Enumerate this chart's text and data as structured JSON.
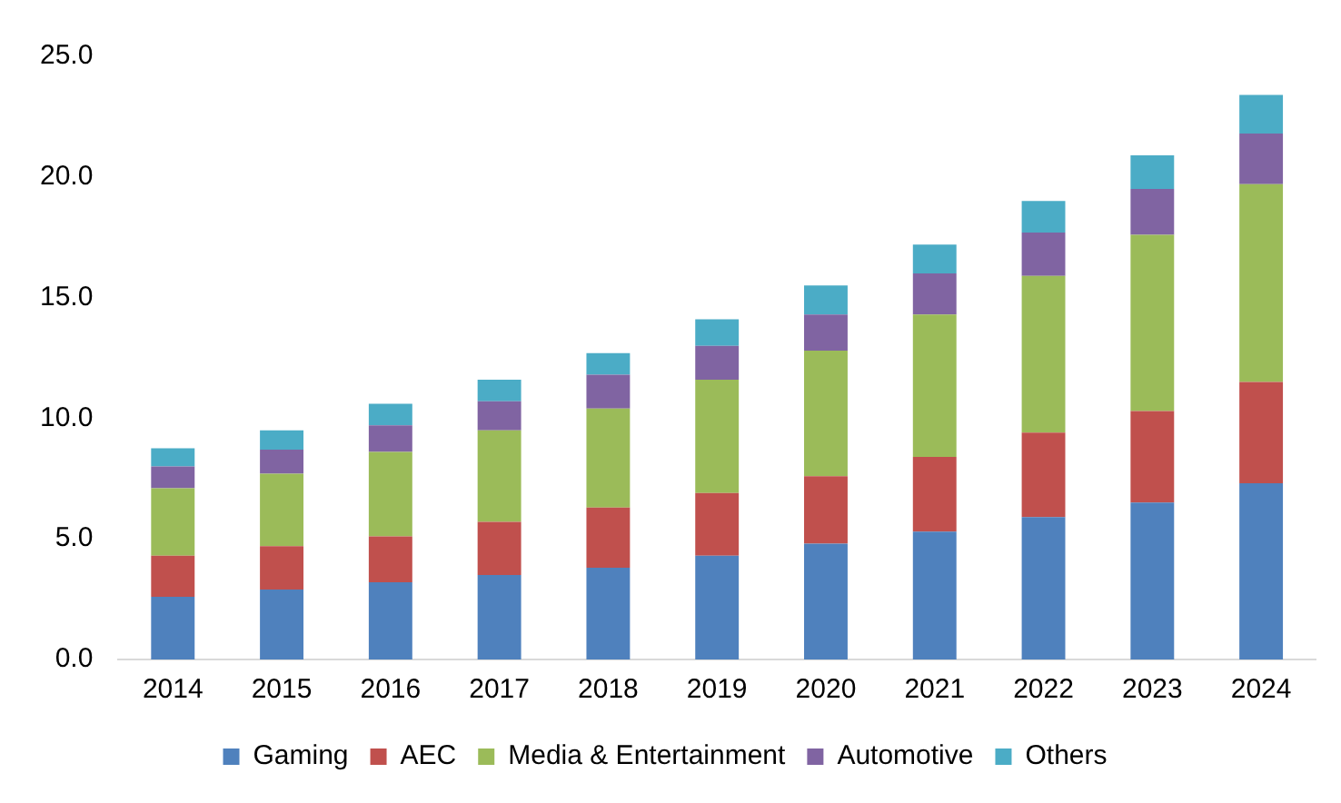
{
  "chart_data": {
    "type": "bar",
    "stacked": true,
    "categories": [
      "2014",
      "2015",
      "2016",
      "2017",
      "2018",
      "2019",
      "2020",
      "2021",
      "2022",
      "2023",
      "2024"
    ],
    "series": [
      {
        "name": "Gaming",
        "color": "#4f81bd",
        "values": [
          2.6,
          2.9,
          3.2,
          3.5,
          3.8,
          4.3,
          4.8,
          5.3,
          5.9,
          6.5,
          7.3
        ]
      },
      {
        "name": "AEC",
        "color": "#c0504d",
        "values": [
          1.7,
          1.8,
          1.9,
          2.2,
          2.5,
          2.6,
          2.8,
          3.1,
          3.5,
          3.8,
          4.2
        ]
      },
      {
        "name": "Media & Entertainment",
        "color": "#9bbb59",
        "values": [
          2.8,
          3.0,
          3.5,
          3.8,
          4.1,
          4.7,
          5.2,
          5.9,
          6.5,
          7.3,
          8.2
        ]
      },
      {
        "name": "Automotive",
        "color": "#8064a2",
        "values": [
          0.9,
          1.0,
          1.1,
          1.2,
          1.4,
          1.4,
          1.5,
          1.7,
          1.8,
          1.9,
          2.1
        ]
      },
      {
        "name": "Others",
        "color": "#4bacc6",
        "values": [
          0.75,
          0.8,
          0.9,
          0.9,
          0.9,
          1.1,
          1.2,
          1.2,
          1.3,
          1.4,
          1.6
        ]
      }
    ],
    "ylim": [
      0,
      25
    ],
    "yticks": [
      {
        "value": 0,
        "label": "0.0"
      },
      {
        "value": 5,
        "label": "5.0"
      },
      {
        "value": 10,
        "label": "10.0"
      },
      {
        "value": 15,
        "label": "15.0"
      },
      {
        "value": 20,
        "label": "20.0"
      },
      {
        "value": 25,
        "label": "25.0"
      }
    ],
    "grid": false,
    "legend": "bottom"
  }
}
